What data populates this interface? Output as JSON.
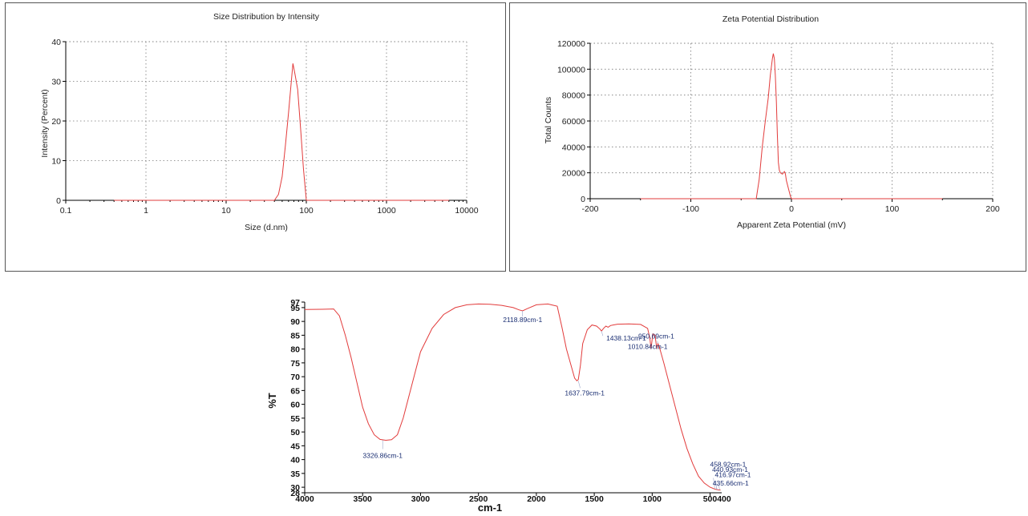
{
  "chart_data": [
    {
      "type": "line",
      "title": "Size Distribution by Intensity",
      "xlabel": "Size (d.nm)",
      "ylabel": "Intensity (Percent)",
      "x_scale": "log",
      "xlim": [
        0.1,
        10000
      ],
      "ylim": [
        0,
        40
      ],
      "x_ticks": [
        "0.1",
        "1",
        "10",
        "100",
        "1000",
        "10000"
      ],
      "y_ticks": [
        "0",
        "10",
        "20",
        "30",
        "40"
      ],
      "grid": true,
      "series": [
        {
          "x": [
            0.4,
            40,
            45,
            50,
            55,
            60,
            65,
            68,
            72,
            78,
            85,
            92,
            100,
            6000
          ],
          "y": [
            0,
            0,
            1.5,
            6,
            14,
            22,
            30,
            34.5,
            32,
            28,
            18,
            8,
            0,
            0
          ]
        }
      ]
    },
    {
      "type": "line",
      "title": "Zeta Potential Distribution",
      "xlabel": "Apparent Zeta Potential (mV)",
      "ylabel": "Total Counts",
      "xlim": [
        -200,
        200
      ],
      "ylim": [
        0,
        120000
      ],
      "x_ticks": [
        "-200",
        "-100",
        "0",
        "100",
        "200"
      ],
      "y_ticks": [
        "0",
        "20000",
        "40000",
        "60000",
        "80000",
        "100000",
        "120000"
      ],
      "grid": true,
      "series": [
        {
          "x": [
            -150,
            -35,
            -32,
            -29,
            -26,
            -23,
            -21,
            -19,
            -18,
            -17,
            -16,
            -15,
            -14,
            -13,
            -12,
            -11,
            -10,
            -9,
            -8,
            -7,
            -6,
            -5,
            -3,
            -1,
            0,
            150
          ],
          "y": [
            0,
            0,
            15000,
            40000,
            60000,
            78000,
            95000,
            108000,
            112000,
            108000,
            95000,
            75000,
            50000,
            28000,
            22000,
            20000,
            19500,
            19000,
            20000,
            21000,
            19000,
            14000,
            8000,
            2000,
            0,
            0
          ]
        }
      ]
    },
    {
      "type": "line",
      "title": "",
      "xlabel": "cm-1",
      "ylabel": "%T",
      "xlim": [
        4000,
        400
      ],
      "ylim": [
        28,
        97
      ],
      "x_ticks": [
        "4000",
        "3500",
        "3000",
        "2500",
        "2000",
        "1500",
        "1000",
        "500400"
      ],
      "y_ticks": [
        "28",
        "30",
        "35",
        "40",
        "45",
        "50",
        "55",
        "60",
        "65",
        "70",
        "75",
        "80",
        "85",
        "90",
        "95",
        "97"
      ],
      "grid": false,
      "series": [
        {
          "x": [
            4000,
            3850,
            3750,
            3700,
            3650,
            3600,
            3550,
            3500,
            3450,
            3400,
            3350,
            3300,
            3250,
            3200,
            3150,
            3100,
            3000,
            2900,
            2800,
            2700,
            2600,
            2500,
            2400,
            2300,
            2200,
            2150,
            2119,
            2080,
            2000,
            1900,
            1820,
            1780,
            1740,
            1700,
            1670,
            1650,
            1638,
            1620,
            1600,
            1560,
            1520,
            1480,
            1450,
            1438,
            1420,
            1400,
            1380,
            1360,
            1300,
            1200,
            1100,
            1040,
            1020,
            1010,
            995,
            975,
            960,
            951,
            940,
            920,
            900,
            850,
            800,
            750,
            700,
            650,
            600,
            550,
            500,
            470,
            459,
            435,
            417,
            410
          ],
          "y": [
            94.3,
            94.4,
            94.5,
            92,
            85,
            77,
            68,
            59,
            53,
            49,
            47.3,
            47,
            47.2,
            49,
            55,
            63,
            79,
            87.5,
            92.5,
            95,
            96,
            96.3,
            96.2,
            95.8,
            95,
            94.2,
            93.8,
            94.6,
            96,
            96.3,
            95.5,
            88,
            80,
            74,
            69.5,
            68.5,
            69,
            74,
            82,
            87,
            88.7,
            88.3,
            87.2,
            86.5,
            87.5,
            88.3,
            87.9,
            88.5,
            89,
            89.1,
            88.9,
            87.5,
            84,
            80,
            85.5,
            85,
            80,
            82,
            81,
            78,
            75,
            67,
            59,
            51,
            44,
            38.5,
            34,
            31.5,
            30,
            29.5,
            29.3,
            29.1,
            29,
            29
          ]
        }
      ],
      "annotations": [
        {
          "text": "3326.86cm-1",
          "x": 3327,
          "y": 47
        },
        {
          "text": "2118.89cm-1",
          "x": 2119,
          "y": 93.8
        },
        {
          "text": "1637.79cm-1",
          "x": 1638,
          "y": 68.5
        },
        {
          "text": "1438.13cm-1",
          "x": 1438,
          "y": 86.5
        },
        {
          "text": "950.69cm-1",
          "x": 951,
          "y": 82
        },
        {
          "text": "1010.84cm-1",
          "x": 1011,
          "y": 80
        },
        {
          "text": "458.92cm-1",
          "x": 459,
          "y": 29.3
        },
        {
          "text": "440.93cm-1",
          "x": 441,
          "y": 29.2
        },
        {
          "text": "416.97cm-1",
          "x": 417,
          "y": 29
        },
        {
          "text": "435.66cm-1",
          "x": 436,
          "y": 29.1
        }
      ]
    }
  ]
}
